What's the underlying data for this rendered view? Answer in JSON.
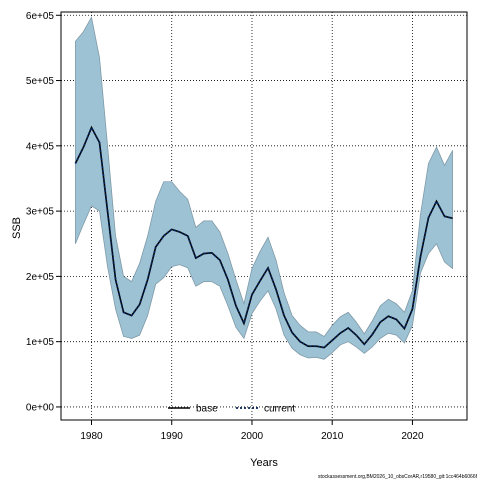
{
  "chart_data": {
    "type": "line",
    "title": "",
    "xlabel": "Years",
    "ylabel": "SSB",
    "xlim": [
      1976.2,
      2026.8
    ],
    "ylim": [
      -20000,
      605000
    ],
    "x_ticks": [
      1980,
      1990,
      2000,
      2010,
      2020
    ],
    "x_tick_labels": [
      "1980",
      "1990",
      "2000",
      "2010",
      "2020"
    ],
    "y_ticks": [
      0,
      100000,
      200000,
      300000,
      400000,
      500000,
      600000
    ],
    "y_tick_labels": [
      "0e+00",
      "1e+05",
      "2e+05",
      "3e+05",
      "4e+05",
      "5e+05",
      "6e+05"
    ],
    "grid": true,
    "legend_position": "bottom-center",
    "colors": {
      "band_fill": "#9dc2d4",
      "band_stroke": "#7f9aa8",
      "base_line": "#000000",
      "current_line": "#05265c",
      "grid": "#000000"
    },
    "x": [
      1978,
      1979,
      1980,
      1981,
      1982,
      1983,
      1984,
      1985,
      1986,
      1987,
      1988,
      1989,
      1990,
      1991,
      1992,
      1993,
      1994,
      1995,
      1996,
      1997,
      1998,
      1999,
      2000,
      2001,
      2002,
      2003,
      2004,
      2005,
      2006,
      2007,
      2008,
      2009,
      2010,
      2011,
      2012,
      2013,
      2014,
      2015,
      2016,
      2017,
      2018,
      2019,
      2020,
      2021,
      2022,
      2023,
      2024,
      2025
    ],
    "series": [
      {
        "name": "base",
        "values": [
          373000,
          398000,
          428000,
          405000,
          300000,
          195000,
          145000,
          140000,
          157000,
          195000,
          245000,
          262000,
          272000,
          268000,
          262000,
          228000,
          235000,
          236000,
          225000,
          195000,
          155000,
          128000,
          172000,
          193000,
          213000,
          180000,
          140000,
          114000,
          100000,
          93000,
          93000,
          91000,
          102000,
          113000,
          121000,
          110000,
          96000,
          111000,
          130000,
          139000,
          134000,
          120000,
          150000,
          230000,
          290000,
          315000,
          292000,
          289000
        ]
      },
      {
        "name": "current",
        "values": [
          373000,
          398000,
          428000,
          405000,
          300000,
          195000,
          145000,
          140000,
          157000,
          195000,
          245000,
          262000,
          272000,
          268000,
          262000,
          228000,
          235000,
          236000,
          225000,
          195000,
          155000,
          128000,
          172000,
          193000,
          213000,
          180000,
          140000,
          114000,
          100000,
          93000,
          93000,
          91000,
          102000,
          113000,
          121000,
          110000,
          96000,
          111000,
          130000,
          139000,
          134000,
          120000,
          150000,
          230000,
          290000,
          315000,
          292000,
          289000
        ]
      }
    ],
    "interval": {
      "lower": [
        250000,
        280000,
        308000,
        300000,
        215000,
        150000,
        108000,
        105000,
        110000,
        140000,
        188000,
        198000,
        215000,
        218000,
        213000,
        185000,
        192000,
        192000,
        185000,
        155000,
        122000,
        105000,
        143000,
        162000,
        178000,
        150000,
        110000,
        90000,
        80000,
        75000,
        76000,
        73000,
        83000,
        95000,
        100000,
        92000,
        82000,
        92000,
        105000,
        113000,
        110000,
        98000,
        125000,
        205000,
        235000,
        250000,
        222000,
        212000
      ],
      "upper": [
        560000,
        575000,
        597000,
        535000,
        400000,
        262000,
        200000,
        192000,
        220000,
        262000,
        315000,
        345000,
        345000,
        330000,
        318000,
        275000,
        285000,
        285000,
        268000,
        235000,
        195000,
        158000,
        212000,
        238000,
        260000,
        225000,
        175000,
        140000,
        125000,
        115000,
        115000,
        108000,
        125000,
        138000,
        145000,
        130000,
        112000,
        132000,
        155000,
        165000,
        158000,
        145000,
        178000,
        295000,
        373000,
        398000,
        370000,
        393000
      ]
    }
  },
  "footer_text": "stockassessment.org,BM2026_10_obsCorAR,r19580_git:1cc464b6066f"
}
